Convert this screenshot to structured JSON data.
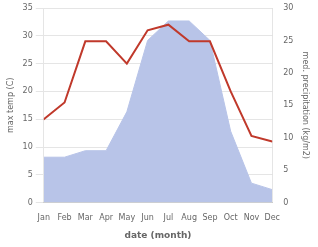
{
  "chart_data": {
    "type": "line",
    "categories": [
      "Jan",
      "Feb",
      "Mar",
      "Apr",
      "May",
      "Jun",
      "Jul",
      "Aug",
      "Sep",
      "Oct",
      "Nov",
      "Dec"
    ],
    "series": [
      {
        "type": "area",
        "color": "#b8c4e8",
        "axis": "y2",
        "values": [
          7,
          7,
          8,
          8,
          14,
          25,
          28,
          28,
          25,
          11,
          3,
          2
        ]
      },
      {
        "type": "line",
        "color": "#c0392b",
        "values": [
          15,
          18,
          29,
          29,
          25,
          31,
          32,
          29,
          29,
          20,
          12,
          11
        ]
      }
    ],
    "xlabel": "date (month)",
    "ylabel": "max temp (C)",
    "y2label": "med. precipitation (kg/m2)",
    "ylim": [
      0,
      35
    ],
    "yticks": [
      0,
      5,
      10,
      15,
      20,
      25,
      30,
      35
    ],
    "y2lim": [
      0,
      30
    ],
    "y2ticks": [
      0,
      5,
      10,
      15,
      20,
      25,
      30
    ],
    "grid": true
  }
}
